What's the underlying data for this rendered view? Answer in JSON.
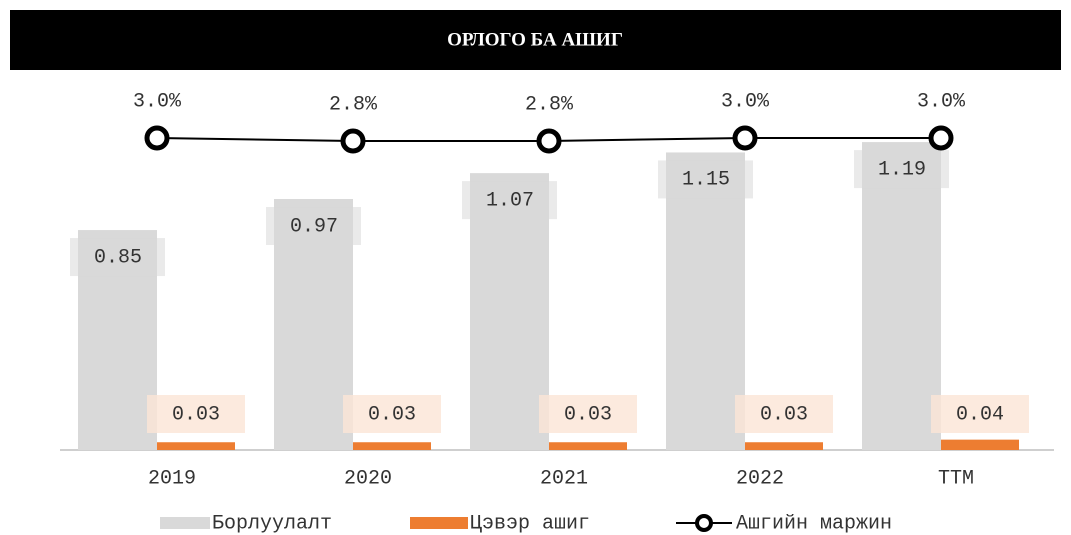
{
  "chart_data": {
    "type": "bar_line",
    "title": "ОРЛОГО БА АШИГ",
    "categories": [
      "2019",
      "2020",
      "2021",
      "2022",
      "TTM"
    ],
    "ylim": [
      0,
      1.6
    ],
    "y2lim": [
      -17.8,
      9.8
    ],
    "series": [
      {
        "name": "Борлуулалт",
        "type": "bar",
        "color": "#d9d9d9",
        "values": [
          0.85,
          0.97,
          1.07,
          1.15,
          1.19
        ]
      },
      {
        "name": "Цэвэр ашиг",
        "type": "bar",
        "color": "#ed7d31",
        "values": [
          0.03,
          0.03,
          0.03,
          0.03,
          0.04
        ]
      },
      {
        "name": "Ашгийн маржин",
        "type": "line",
        "axis": "y2",
        "color": "#000000",
        "values": [
          3.0,
          2.8,
          2.8,
          3.0,
          3.0
        ],
        "value_labels": [
          "3.0%",
          "2.8%",
          "2.8%",
          "3.0%",
          "3.0%"
        ]
      }
    ]
  }
}
